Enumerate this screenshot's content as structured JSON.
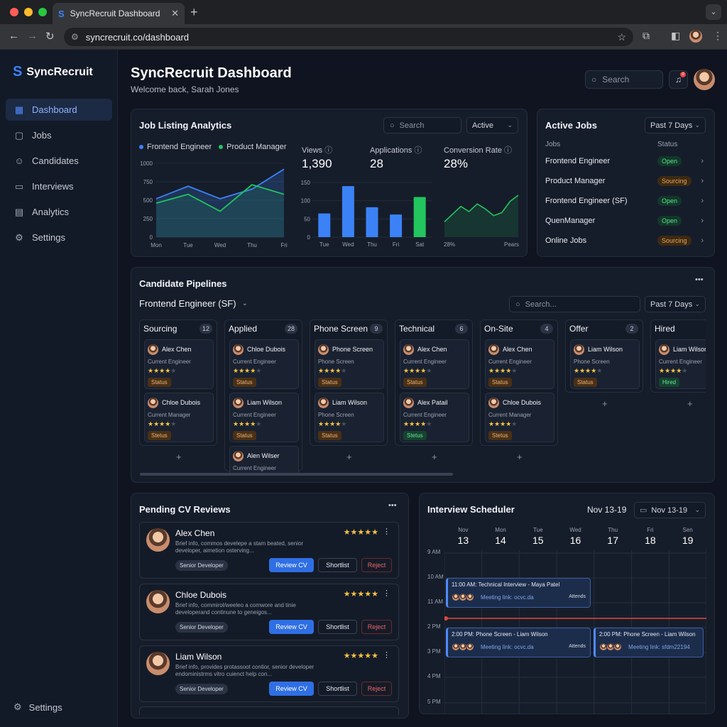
{
  "browser": {
    "tab_title": "SyncRecruit Dashboard",
    "url": "syncrecruit.co/dashboard"
  },
  "sidebar": {
    "brand": "SyncRecruit",
    "items": [
      {
        "label": "Dashboard",
        "icon": "grid-icon"
      },
      {
        "label": "Jobs",
        "icon": "briefcase-icon"
      },
      {
        "label": "Candidates",
        "icon": "users-icon"
      },
      {
        "label": "Interviews",
        "icon": "video-icon"
      },
      {
        "label": "Analytics",
        "icon": "chart-icon"
      },
      {
        "label": "Settings",
        "icon": "gear-icon"
      }
    ],
    "bottom_settings": "Settings"
  },
  "header": {
    "title": "SyncRecruit Dashboard",
    "welcome": "Welcome back, Sarah Jones",
    "search_placeholder": "Search",
    "notification_count": "0"
  },
  "analytics": {
    "title": "Job Listing Analytics",
    "search_placeholder": "Search",
    "filter": "Active",
    "legend": [
      "Frontend Engineer",
      "Product Manager"
    ],
    "views_label": "Views",
    "views_value": "1,390",
    "applications_label": "Applications",
    "applications_value": "28",
    "conversion_label": "Conversion Rate",
    "conversion_value": "28%",
    "conv_axis_left": "28%",
    "conv_axis_right": "Pears"
  },
  "chart_data": [
    {
      "type": "area",
      "categories": [
        "Mon",
        "Tue",
        "Wed",
        "Thu",
        "Fri"
      ],
      "ylim": [
        0,
        1000
      ],
      "yticks": [
        0,
        250,
        500,
        750,
        1000
      ],
      "series": [
        {
          "name": "Frontend Engineer",
          "color": "#3b82f6",
          "values": [
            520,
            690,
            520,
            650,
            920
          ]
        },
        {
          "name": "Product Manager",
          "color": "#22c55e",
          "values": [
            460,
            580,
            350,
            710,
            580
          ]
        }
      ]
    },
    {
      "type": "bar",
      "categories": [
        "Tue",
        "Wed",
        "Thu",
        "Fri",
        "Sat"
      ],
      "values": [
        65,
        140,
        82,
        62,
        110
      ],
      "colors": [
        "#3b82f6",
        "#3b82f6",
        "#3b82f6",
        "#3b82f6",
        "#22c55e"
      ],
      "ylim": [
        0,
        150
      ],
      "yticks": [
        0,
        50,
        100,
        150
      ]
    },
    {
      "type": "area",
      "categories": [
        "1",
        "2",
        "3",
        "4",
        "5",
        "6",
        "7",
        "8",
        "9",
        "10"
      ],
      "values": [
        30,
        45,
        60,
        50,
        65,
        55,
        42,
        48,
        70,
        82
      ],
      "ylim": [
        0,
        100
      ],
      "color": "#22c55e"
    }
  ],
  "active_jobs": {
    "title": "Active Jobs",
    "filter": "Past 7 Days",
    "col_jobs": "Jobs",
    "col_status": "Status",
    "rows": [
      {
        "job": "Frontend Engineer",
        "status": "Open",
        "kind": "open"
      },
      {
        "job": "Product Manager",
        "status": "Sourcing",
        "kind": "src"
      },
      {
        "job": "Frontend Engineer (SF)",
        "status": "Open",
        "kind": "open"
      },
      {
        "job": "QuenManager",
        "status": "Open",
        "kind": "open"
      },
      {
        "job": "Online Jobs",
        "status": "Sourcing",
        "kind": "src"
      }
    ]
  },
  "pipelines": {
    "title": "Candidate Pipelines",
    "job_select": "Frontend Engineer (SF)",
    "search_placeholder": "Search...",
    "filter": "Past 7 Days",
    "columns": [
      {
        "name": "Sourcing",
        "count": "12",
        "cards": [
          {
            "name": "Alex Chen",
            "role": "Current Engineer",
            "stars": 4,
            "chip": "Status",
            "chip_kind": "st"
          },
          {
            "name": "Chloe Dubois",
            "role": "Current Manager",
            "stars": 4,
            "chip": "Stetus",
            "chip_kind": "st"
          }
        ]
      },
      {
        "name": "Applied",
        "count": "28",
        "cards": [
          {
            "name": "Chloe Dubois",
            "role": "Current Engineer",
            "stars": 4,
            "chip": "Status",
            "chip_kind": "st"
          },
          {
            "name": "Liam Wilson",
            "role": "Current Engineer",
            "stars": 4,
            "chip": "Status",
            "chip_kind": "st"
          },
          {
            "name": "Alen Wilser",
            "role": "Current Engineer",
            "stars": 0,
            "chip": "",
            "chip_kind": "st"
          }
        ]
      },
      {
        "name": "Phone Screen",
        "count": "9",
        "cards": [
          {
            "name": "Phone Screen",
            "role": "Phone Screen",
            "stars": 4,
            "chip": "Status",
            "chip_kind": "st"
          },
          {
            "name": "Liam Wilson",
            "role": "Phone Screen",
            "stars": 4,
            "chip": "Status",
            "chip_kind": "st"
          }
        ]
      },
      {
        "name": "Technical",
        "count": "6",
        "cards": [
          {
            "name": "Alex Chen",
            "role": "Current Engineer",
            "stars": 4,
            "chip": "Status",
            "chip_kind": "st"
          },
          {
            "name": "Alex Patail",
            "role": "Current Engineer",
            "stars": 4,
            "chip": "Stetus",
            "chip_kind": "hired"
          }
        ]
      },
      {
        "name": "On-Site",
        "count": "4",
        "cards": [
          {
            "name": "Alex Chen",
            "role": "Current Engineer",
            "stars": 4,
            "chip": "Status",
            "chip_kind": "st"
          },
          {
            "name": "Chloe Dubois",
            "role": "Current Manager",
            "stars": 4,
            "chip": "Stetus",
            "chip_kind": "st"
          }
        ]
      },
      {
        "name": "Offer",
        "count": "2",
        "cards": [
          {
            "name": "Liam Wilson",
            "role": "Phone Screen",
            "stars": 4,
            "chip": "Status",
            "chip_kind": "st"
          }
        ]
      },
      {
        "name": "Hired",
        "count": "",
        "cards": [
          {
            "name": "Liam Wilsor",
            "role": "Current Engineer",
            "stars": 4,
            "chip": "Hired",
            "chip_kind": "hired"
          }
        ]
      }
    ]
  },
  "cv_reviews": {
    "title": "Pending CV Reviews",
    "items": [
      {
        "name": "Alex Chen",
        "desc": "Brief info, commos develepe a stam beated, senior developer, aimetion osterving...",
        "tag": "Senior Developer",
        "rating": "★★★★★"
      },
      {
        "name": "Chloe Dubois",
        "desc": "Brief info, commirol/weeleo a comwore and tinie developerand continune to geneigos...",
        "tag": "Senior Developer",
        "rating": "★★★★★"
      },
      {
        "name": "Liam Wilson",
        "desc": "Brief info, provides protassoot contior, senior developer endoministrms vitro cuienct help con...",
        "tag": "Senior Developer",
        "rating": "★★★★★"
      }
    ],
    "review_label": "Review CV",
    "shortlist_label": "Shortlist",
    "reject_label": "Reject"
  },
  "scheduler": {
    "title": "Interview Scheduler",
    "range": "Nov 13-19",
    "range_select": "Nov 13-19",
    "days": [
      {
        "d": "Nov",
        "n": "13"
      },
      {
        "d": "Mon",
        "n": "14"
      },
      {
        "d": "Tue",
        "n": "15"
      },
      {
        "d": "Wed",
        "n": "16"
      },
      {
        "d": "Thu",
        "n": "17"
      },
      {
        "d": "Fri",
        "n": "18"
      },
      {
        "d": "Sen",
        "n": "19"
      }
    ],
    "times": [
      "9 AM",
      "10 AM",
      "11 AM",
      "2 PM",
      "3 PM",
      "4 PM",
      "5 PM"
    ],
    "events": [
      {
        "title": "11:00 AM: Technical Interview - Maya Patel",
        "link": "Meeting link: ocvc.da",
        "attend": "Attends"
      },
      {
        "title": "2:00 PM: Phone Screen - Liam Wilson",
        "link": "Meeting link: ocvc.da",
        "attend": "Attends"
      },
      {
        "title": "2:00 PM: Phone Screen - Liam Wilson",
        "link": "Meeting link: sfdm22194",
        "attend": ""
      }
    ]
  }
}
